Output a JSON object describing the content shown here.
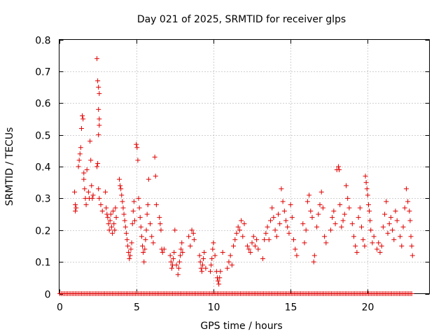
{
  "chart_data": {
    "type": "scatter",
    "title": "Day 021 of 2025, SRMTID for receiver glps",
    "xlabel": "GPS time / hours",
    "ylabel": "SRMTID / TECUs",
    "xlim": [
      0,
      24
    ],
    "ylim": [
      0,
      0.8
    ],
    "xticks": [
      0,
      5,
      10,
      15,
      20
    ],
    "xtick_labels": [
      "0",
      "5",
      "10",
      "15",
      "20"
    ],
    "yticks": [
      0,
      0.1,
      0.2,
      0.3,
      0.4,
      0.5,
      0.6,
      0.7,
      0.8
    ],
    "ytick_labels": [
      "0",
      "0.1",
      "0.2",
      "0.3",
      "0.4",
      "0.5",
      "0.6",
      "0.7",
      "0.8"
    ],
    "grid": true,
    "marker": "plus",
    "color": "#e00000",
    "series": [
      {
        "name": "SRMTID",
        "points": [
          [
            1.0,
            0.32
          ],
          [
            1.05,
            0.28
          ],
          [
            1.05,
            0.26
          ],
          [
            1.1,
            0.27
          ],
          [
            1.25,
            0.4
          ],
          [
            1.3,
            0.42
          ],
          [
            1.35,
            0.44
          ],
          [
            1.4,
            0.46
          ],
          [
            1.45,
            0.52
          ],
          [
            1.5,
            0.56
          ],
          [
            1.55,
            0.55
          ],
          [
            1.6,
            0.38
          ],
          [
            1.6,
            0.36
          ],
          [
            1.65,
            0.33
          ],
          [
            1.7,
            0.3
          ],
          [
            1.75,
            0.28
          ],
          [
            1.8,
            0.39
          ],
          [
            1.9,
            0.32
          ],
          [
            1.95,
            0.3
          ],
          [
            2.0,
            0.48
          ],
          [
            2.05,
            0.42
          ],
          [
            2.1,
            0.34
          ],
          [
            2.15,
            0.3
          ],
          [
            2.2,
            0.31
          ],
          [
            2.45,
            0.74
          ],
          [
            2.5,
            0.67
          ],
          [
            2.55,
            0.65
          ],
          [
            2.6,
            0.63
          ],
          [
            2.55,
            0.58
          ],
          [
            2.6,
            0.55
          ],
          [
            2.6,
            0.53
          ],
          [
            2.55,
            0.5
          ],
          [
            2.5,
            0.41
          ],
          [
            2.45,
            0.4
          ],
          [
            2.55,
            0.33
          ],
          [
            2.6,
            0.3
          ],
          [
            2.7,
            0.28
          ],
          [
            2.8,
            0.26
          ],
          [
            3.0,
            0.32
          ],
          [
            3.05,
            0.27
          ],
          [
            3.1,
            0.25
          ],
          [
            3.15,
            0.24
          ],
          [
            3.2,
            0.22
          ],
          [
            3.25,
            0.2
          ],
          [
            3.3,
            0.23
          ],
          [
            3.35,
            0.25
          ],
          [
            3.4,
            0.21
          ],
          [
            3.45,
            0.19
          ],
          [
            3.5,
            0.26
          ],
          [
            3.55,
            0.22
          ],
          [
            3.6,
            0.2
          ],
          [
            3.65,
            0.27
          ],
          [
            3.7,
            0.24
          ],
          [
            3.9,
            0.36
          ],
          [
            3.95,
            0.34
          ],
          [
            4.0,
            0.33
          ],
          [
            4.05,
            0.31
          ],
          [
            4.1,
            0.29
          ],
          [
            4.15,
            0.27
          ],
          [
            4.2,
            0.25
          ],
          [
            4.25,
            0.23
          ],
          [
            4.3,
            0.21
          ],
          [
            4.35,
            0.19
          ],
          [
            4.4,
            0.17
          ],
          [
            4.45,
            0.15
          ],
          [
            4.5,
            0.13
          ],
          [
            4.55,
            0.11
          ],
          [
            4.6,
            0.12
          ],
          [
            4.65,
            0.14
          ],
          [
            4.7,
            0.16
          ],
          [
            4.75,
            0.22
          ],
          [
            4.8,
            0.26
          ],
          [
            4.85,
            0.29
          ],
          [
            4.9,
            0.23
          ],
          [
            5.0,
            0.47
          ],
          [
            5.05,
            0.46
          ],
          [
            5.1,
            0.42
          ],
          [
            5.15,
            0.3
          ],
          [
            5.2,
            0.27
          ],
          [
            5.25,
            0.24
          ],
          [
            5.3,
            0.21
          ],
          [
            5.35,
            0.18
          ],
          [
            5.4,
            0.15
          ],
          [
            5.45,
            0.13
          ],
          [
            5.5,
            0.1
          ],
          [
            5.55,
            0.14
          ],
          [
            5.6,
            0.17
          ],
          [
            5.65,
            0.2
          ],
          [
            5.7,
            0.25
          ],
          [
            5.75,
            0.28
          ],
          [
            5.8,
            0.36
          ],
          [
            5.9,
            0.22
          ],
          [
            6.0,
            0.18
          ],
          [
            6.1,
            0.16
          ],
          [
            6.2,
            0.43
          ],
          [
            6.25,
            0.37
          ],
          [
            6.3,
            0.28
          ],
          [
            6.5,
            0.24
          ],
          [
            6.55,
            0.22
          ],
          [
            6.6,
            0.2
          ],
          [
            6.65,
            0.14
          ],
          [
            6.7,
            0.13
          ],
          [
            6.8,
            0.14
          ],
          [
            7.2,
            0.12
          ],
          [
            7.25,
            0.1
          ],
          [
            7.3,
            0.08
          ],
          [
            7.35,
            0.09
          ],
          [
            7.4,
            0.11
          ],
          [
            7.45,
            0.13
          ],
          [
            7.5,
            0.2
          ],
          [
            7.6,
            0.09
          ],
          [
            7.7,
            0.06
          ],
          [
            7.75,
            0.08
          ],
          [
            7.8,
            0.1
          ],
          [
            7.85,
            0.12
          ],
          [
            7.9,
            0.14
          ],
          [
            7.95,
            0.16
          ],
          [
            8.0,
            0.13
          ],
          [
            8.4,
            0.18
          ],
          [
            8.5,
            0.15
          ],
          [
            8.6,
            0.2
          ],
          [
            8.7,
            0.19
          ],
          [
            8.75,
            0.17
          ],
          [
            9.1,
            0.12
          ],
          [
            9.15,
            0.1
          ],
          [
            9.2,
            0.08
          ],
          [
            9.25,
            0.07
          ],
          [
            9.3,
            0.09
          ],
          [
            9.35,
            0.11
          ],
          [
            9.4,
            0.13
          ],
          [
            9.5,
            0.08
          ],
          [
            9.8,
            0.07
          ],
          [
            9.85,
            0.09
          ],
          [
            9.9,
            0.11
          ],
          [
            9.95,
            0.14
          ],
          [
            10.0,
            0.16
          ],
          [
            10.1,
            0.12
          ],
          [
            10.2,
            0.07
          ],
          [
            10.25,
            0.05
          ],
          [
            10.3,
            0.04
          ],
          [
            10.35,
            0.03
          ],
          [
            10.4,
            0.05
          ],
          [
            10.45,
            0.07
          ],
          [
            10.6,
            0.13
          ],
          [
            10.9,
            0.08
          ],
          [
            11.0,
            0.1
          ],
          [
            11.1,
            0.12
          ],
          [
            11.2,
            0.09
          ],
          [
            11.3,
            0.15
          ],
          [
            11.4,
            0.17
          ],
          [
            11.5,
            0.19
          ],
          [
            11.6,
            0.21
          ],
          [
            11.7,
            0.2
          ],
          [
            11.8,
            0.23
          ],
          [
            11.9,
            0.18
          ],
          [
            12.0,
            0.22
          ],
          [
            12.2,
            0.15
          ],
          [
            12.3,
            0.14
          ],
          [
            12.4,
            0.13
          ],
          [
            12.5,
            0.16
          ],
          [
            12.6,
            0.18
          ],
          [
            12.7,
            0.15
          ],
          [
            12.8,
            0.17
          ],
          [
            12.9,
            0.14
          ],
          [
            13.2,
            0.11
          ],
          [
            13.3,
            0.17
          ],
          [
            13.4,
            0.19
          ],
          [
            13.5,
            0.21
          ],
          [
            13.6,
            0.17
          ],
          [
            13.7,
            0.23
          ],
          [
            13.8,
            0.27
          ],
          [
            13.9,
            0.24
          ],
          [
            14.0,
            0.2
          ],
          [
            14.1,
            0.18
          ],
          [
            14.2,
            0.25
          ],
          [
            14.3,
            0.22
          ],
          [
            14.4,
            0.33
          ],
          [
            14.5,
            0.29
          ],
          [
            14.6,
            0.26
          ],
          [
            14.7,
            0.23
          ],
          [
            14.8,
            0.21
          ],
          [
            14.9,
            0.19
          ],
          [
            15.0,
            0.28
          ],
          [
            15.1,
            0.24
          ],
          [
            15.2,
            0.17
          ],
          [
            15.3,
            0.14
          ],
          [
            15.4,
            0.12
          ],
          [
            15.8,
            0.22
          ],
          [
            15.9,
            0.16
          ],
          [
            16.0,
            0.2
          ],
          [
            16.1,
            0.29
          ],
          [
            16.2,
            0.31
          ],
          [
            16.3,
            0.26
          ],
          [
            16.4,
            0.24
          ],
          [
            16.5,
            0.1
          ],
          [
            16.55,
            0.12
          ],
          [
            16.7,
            0.21
          ],
          [
            16.8,
            0.25
          ],
          [
            16.9,
            0.28
          ],
          [
            17.0,
            0.32
          ],
          [
            17.1,
            0.27
          ],
          [
            17.2,
            0.18
          ],
          [
            17.3,
            0.16
          ],
          [
            17.6,
            0.2
          ],
          [
            17.7,
            0.24
          ],
          [
            17.8,
            0.26
          ],
          [
            17.9,
            0.22
          ],
          [
            18.0,
            0.39
          ],
          [
            18.1,
            0.4
          ],
          [
            18.15,
            0.39
          ],
          [
            18.2,
            0.28
          ],
          [
            18.3,
            0.21
          ],
          [
            18.4,
            0.23
          ],
          [
            18.5,
            0.25
          ],
          [
            18.6,
            0.34
          ],
          [
            18.7,
            0.3
          ],
          [
            18.8,
            0.27
          ],
          [
            19.0,
            0.22
          ],
          [
            19.1,
            0.18
          ],
          [
            19.2,
            0.15
          ],
          [
            19.3,
            0.13
          ],
          [
            19.4,
            0.24
          ],
          [
            19.5,
            0.27
          ],
          [
            19.6,
            0.21
          ],
          [
            19.7,
            0.17
          ],
          [
            19.8,
            0.15
          ],
          [
            19.85,
            0.37
          ],
          [
            19.9,
            0.35
          ],
          [
            19.95,
            0.33
          ],
          [
            20.0,
            0.31
          ],
          [
            20.05,
            0.28
          ],
          [
            20.1,
            0.26
          ],
          [
            20.15,
            0.23
          ],
          [
            20.2,
            0.2
          ],
          [
            20.3,
            0.16
          ],
          [
            20.4,
            0.18
          ],
          [
            20.6,
            0.14
          ],
          [
            20.7,
            0.16
          ],
          [
            20.8,
            0.13
          ],
          [
            20.9,
            0.15
          ],
          [
            21.0,
            0.21
          ],
          [
            21.1,
            0.25
          ],
          [
            21.2,
            0.29
          ],
          [
            21.3,
            0.19
          ],
          [
            21.4,
            0.22
          ],
          [
            21.5,
            0.24
          ],
          [
            21.6,
            0.2
          ],
          [
            21.7,
            0.17
          ],
          [
            21.8,
            0.26
          ],
          [
            21.9,
            0.23
          ],
          [
            22.1,
            0.18
          ],
          [
            22.2,
            0.15
          ],
          [
            22.3,
            0.21
          ],
          [
            22.4,
            0.27
          ],
          [
            22.5,
            0.33
          ],
          [
            22.6,
            0.29
          ],
          [
            22.7,
            0.26
          ],
          [
            22.75,
            0.23
          ],
          [
            22.8,
            0.18
          ],
          [
            22.85,
            0.15
          ],
          [
            22.9,
            0.12
          ]
        ]
      }
    ],
    "baseline": {
      "y": 0,
      "x_from": 0.05,
      "x_to": 22.9,
      "step": 0.1
    }
  }
}
